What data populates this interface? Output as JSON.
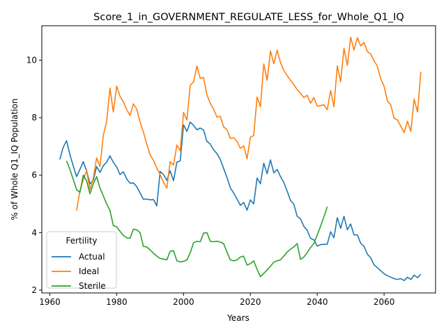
{
  "chart_data": {
    "type": "line",
    "title": "Score_1_in_GOVERNMENT_REGULATE_LESS_for_Whole_Q1_IQ",
    "xlabel": "Years",
    "ylabel": "% of Whole Q1_IQ Population",
    "xlim": [
      1957.6,
      2075.4
    ],
    "ylim": [
      1.9,
      11.2
    ],
    "xticks": [
      1960,
      1980,
      2000,
      2020,
      2040,
      2060
    ],
    "yticks": [
      2,
      4,
      6,
      8,
      10
    ],
    "grid": false,
    "legend": {
      "title": "Fertility",
      "position": "lower-left"
    },
    "series": [
      {
        "name": "Actual",
        "color": "#1f77b4",
        "points": [
          [
            1963,
            6.55
          ],
          [
            1964,
            6.97
          ],
          [
            1965,
            7.2
          ],
          [
            1966,
            6.72
          ],
          [
            1967,
            6.32
          ],
          [
            1968,
            5.95
          ],
          [
            1969,
            6.2
          ],
          [
            1970,
            6.47
          ],
          [
            1971,
            6.15
          ],
          [
            1972,
            5.7
          ],
          [
            1973,
            5.82
          ],
          [
            1974,
            6.3
          ],
          [
            1975,
            6.1
          ],
          [
            1976,
            6.33
          ],
          [
            1977,
            6.45
          ],
          [
            1978,
            6.67
          ],
          [
            1979,
            6.45
          ],
          [
            1980,
            6.28
          ],
          [
            1981,
            6.02
          ],
          [
            1982,
            6.12
          ],
          [
            1983,
            5.87
          ],
          [
            1984,
            5.72
          ],
          [
            1985,
            5.73
          ],
          [
            1986,
            5.6
          ],
          [
            1987,
            5.38
          ],
          [
            1988,
            5.16
          ],
          [
            1989,
            5.17
          ],
          [
            1990,
            5.14
          ],
          [
            1991,
            5.15
          ],
          [
            1992,
            4.93
          ],
          [
            1993,
            6.13
          ],
          [
            1994,
            6.02
          ],
          [
            1995,
            5.82
          ],
          [
            1996,
            6.15
          ],
          [
            1997,
            5.81
          ],
          [
            1998,
            6.45
          ],
          [
            1999,
            6.5
          ],
          [
            2000,
            7.75
          ],
          [
            2001,
            7.52
          ],
          [
            2002,
            7.85
          ],
          [
            2003,
            7.73
          ],
          [
            2004,
            7.58
          ],
          [
            2005,
            7.64
          ],
          [
            2006,
            7.57
          ],
          [
            2007,
            7.18
          ],
          [
            2008,
            7.08
          ],
          [
            2009,
            6.88
          ],
          [
            2010,
            6.75
          ],
          [
            2011,
            6.55
          ],
          [
            2012,
            6.23
          ],
          [
            2013,
            5.92
          ],
          [
            2014,
            5.56
          ],
          [
            2015,
            5.38
          ],
          [
            2016,
            5.17
          ],
          [
            2017,
            4.95
          ],
          [
            2018,
            5.05
          ],
          [
            2019,
            4.78
          ],
          [
            2020,
            5.14
          ],
          [
            2021,
            5.0
          ],
          [
            2022,
            5.9
          ],
          [
            2023,
            5.7
          ],
          [
            2024,
            6.42
          ],
          [
            2025,
            6.05
          ],
          [
            2026,
            6.53
          ],
          [
            2027,
            6.08
          ],
          [
            2028,
            6.2
          ],
          [
            2029,
            5.95
          ],
          [
            2030,
            5.75
          ],
          [
            2031,
            5.45
          ],
          [
            2032,
            5.12
          ],
          [
            2033,
            4.99
          ],
          [
            2034,
            4.57
          ],
          [
            2035,
            4.48
          ],
          [
            2036,
            4.22
          ],
          [
            2037,
            4.08
          ],
          [
            2038,
            3.8
          ],
          [
            2039,
            3.75
          ],
          [
            2040,
            3.53
          ],
          [
            2041,
            3.58
          ],
          [
            2042,
            3.59
          ],
          [
            2043,
            3.6
          ],
          [
            2044,
            4.03
          ],
          [
            2045,
            3.82
          ],
          [
            2046,
            4.52
          ],
          [
            2047,
            4.15
          ],
          [
            2048,
            4.57
          ],
          [
            2049,
            4.1
          ],
          [
            2050,
            4.3
          ],
          [
            2051,
            3.92
          ],
          [
            2052,
            3.92
          ],
          [
            2053,
            3.63
          ],
          [
            2054,
            3.52
          ],
          [
            2055,
            3.25
          ],
          [
            2056,
            3.12
          ],
          [
            2057,
            2.88
          ],
          [
            2058,
            2.78
          ],
          [
            2059,
            2.67
          ],
          [
            2060,
            2.57
          ],
          [
            2061,
            2.5
          ],
          [
            2062,
            2.45
          ],
          [
            2063,
            2.4
          ],
          [
            2064,
            2.37
          ],
          [
            2065,
            2.4
          ],
          [
            2066,
            2.33
          ],
          [
            2067,
            2.45
          ],
          [
            2068,
            2.37
          ],
          [
            2069,
            2.52
          ],
          [
            2070,
            2.43
          ],
          [
            2071,
            2.55
          ]
        ]
      },
      {
        "name": "Ideal",
        "color": "#ff7f0e",
        "points": [
          [
            1968,
            4.77
          ],
          [
            1969,
            5.45
          ],
          [
            1970,
            5.85
          ],
          [
            1971,
            6.15
          ],
          [
            1972,
            5.5
          ],
          [
            1973,
            5.9
          ],
          [
            1974,
            6.6
          ],
          [
            1975,
            6.3
          ],
          [
            1976,
            7.4
          ],
          [
            1977,
            7.85
          ],
          [
            1978,
            9.03
          ],
          [
            1979,
            8.2
          ],
          [
            1980,
            9.1
          ],
          [
            1981,
            8.75
          ],
          [
            1982,
            8.55
          ],
          [
            1983,
            8.28
          ],
          [
            1984,
            8.08
          ],
          [
            1985,
            8.48
          ],
          [
            1986,
            8.3
          ],
          [
            1987,
            7.85
          ],
          [
            1988,
            7.5
          ],
          [
            1989,
            7.08
          ],
          [
            1990,
            6.7
          ],
          [
            1991,
            6.52
          ],
          [
            1992,
            6.25
          ],
          [
            1993,
            6.02
          ],
          [
            1994,
            5.75
          ],
          [
            1995,
            5.55
          ],
          [
            1996,
            6.47
          ],
          [
            1997,
            6.35
          ],
          [
            1998,
            7.05
          ],
          [
            1999,
            6.85
          ],
          [
            2000,
            8.18
          ],
          [
            2001,
            7.92
          ],
          [
            2002,
            9.12
          ],
          [
            2003,
            9.25
          ],
          [
            2004,
            9.8
          ],
          [
            2005,
            9.37
          ],
          [
            2006,
            9.4
          ],
          [
            2007,
            8.8
          ],
          [
            2008,
            8.5
          ],
          [
            2009,
            8.3
          ],
          [
            2010,
            8.02
          ],
          [
            2011,
            8.05
          ],
          [
            2012,
            7.68
          ],
          [
            2013,
            7.58
          ],
          [
            2014,
            7.28
          ],
          [
            2015,
            7.3
          ],
          [
            2016,
            7.18
          ],
          [
            2017,
            6.93
          ],
          [
            2018,
            7.02
          ],
          [
            2019,
            6.57
          ],
          [
            2020,
            7.32
          ],
          [
            2021,
            7.38
          ],
          [
            2022,
            8.72
          ],
          [
            2023,
            8.38
          ],
          [
            2024,
            9.87
          ],
          [
            2025,
            9.3
          ],
          [
            2026,
            10.32
          ],
          [
            2027,
            9.88
          ],
          [
            2028,
            10.35
          ],
          [
            2029,
            9.92
          ],
          [
            2030,
            9.65
          ],
          [
            2031,
            9.47
          ],
          [
            2032,
            9.3
          ],
          [
            2033,
            9.15
          ],
          [
            2034,
            8.98
          ],
          [
            2035,
            8.85
          ],
          [
            2036,
            8.7
          ],
          [
            2037,
            8.78
          ],
          [
            2038,
            8.5
          ],
          [
            2039,
            8.7
          ],
          [
            2040,
            8.4
          ],
          [
            2041,
            8.42
          ],
          [
            2042,
            8.45
          ],
          [
            2043,
            8.28
          ],
          [
            2044,
            8.95
          ],
          [
            2045,
            8.38
          ],
          [
            2046,
            9.8
          ],
          [
            2047,
            9.25
          ],
          [
            2048,
            10.42
          ],
          [
            2049,
            9.82
          ],
          [
            2050,
            10.8
          ],
          [
            2051,
            10.35
          ],
          [
            2052,
            10.78
          ],
          [
            2053,
            10.5
          ],
          [
            2054,
            10.62
          ],
          [
            2055,
            10.3
          ],
          [
            2056,
            10.22
          ],
          [
            2057,
            9.98
          ],
          [
            2058,
            9.8
          ],
          [
            2059,
            9.35
          ],
          [
            2060,
            9.1
          ],
          [
            2061,
            8.58
          ],
          [
            2062,
            8.45
          ],
          [
            2063,
            7.98
          ],
          [
            2064,
            7.92
          ],
          [
            2065,
            7.7
          ],
          [
            2066,
            7.48
          ],
          [
            2067,
            7.88
          ],
          [
            2068,
            7.52
          ],
          [
            2069,
            8.65
          ],
          [
            2070,
            8.2
          ],
          [
            2071,
            9.6
          ]
        ]
      },
      {
        "name": "Sterile",
        "color": "#2ca02c",
        "points": [
          [
            1965,
            6.5
          ],
          [
            1966,
            6.2
          ],
          [
            1967,
            5.85
          ],
          [
            1968,
            5.5
          ],
          [
            1969,
            5.4
          ],
          [
            1970,
            6.0
          ],
          [
            1971,
            5.8
          ],
          [
            1972,
            5.35
          ],
          [
            1973,
            5.7
          ],
          [
            1974,
            5.95
          ],
          [
            1975,
            5.55
          ],
          [
            1976,
            5.28
          ],
          [
            1977,
            5.0
          ],
          [
            1978,
            4.77
          ],
          [
            1979,
            4.25
          ],
          [
            1980,
            4.2
          ],
          [
            1981,
            4.05
          ],
          [
            1982,
            3.9
          ],
          [
            1983,
            3.82
          ],
          [
            1984,
            3.8
          ],
          [
            1985,
            4.12
          ],
          [
            1986,
            4.1
          ],
          [
            1987,
            4.0
          ],
          [
            1988,
            3.52
          ],
          [
            1989,
            3.5
          ],
          [
            1990,
            3.4
          ],
          [
            1991,
            3.28
          ],
          [
            1992,
            3.18
          ],
          [
            1993,
            3.1
          ],
          [
            1994,
            3.08
          ],
          [
            1995,
            3.05
          ],
          [
            1996,
            3.35
          ],
          [
            1997,
            3.37
          ],
          [
            1998,
            3.02
          ],
          [
            1999,
            2.98
          ],
          [
            2000,
            3.0
          ],
          [
            2001,
            3.05
          ],
          [
            2002,
            3.3
          ],
          [
            2003,
            3.65
          ],
          [
            2004,
            3.7
          ],
          [
            2005,
            3.68
          ],
          [
            2006,
            3.98
          ],
          [
            2007,
            4.0
          ],
          [
            2008,
            3.7
          ],
          [
            2009,
            3.68
          ],
          [
            2010,
            3.7
          ],
          [
            2011,
            3.67
          ],
          [
            2012,
            3.62
          ],
          [
            2013,
            3.32
          ],
          [
            2014,
            3.05
          ],
          [
            2015,
            3.02
          ],
          [
            2016,
            3.05
          ],
          [
            2017,
            3.15
          ],
          [
            2018,
            3.18
          ],
          [
            2019,
            2.87
          ],
          [
            2020,
            2.92
          ],
          [
            2021,
            3.02
          ],
          [
            2022,
            2.72
          ],
          [
            2023,
            2.47
          ],
          [
            2024,
            2.58
          ],
          [
            2025,
            2.7
          ],
          [
            2026,
            2.83
          ],
          [
            2027,
            2.97
          ],
          [
            2028,
            3.02
          ],
          [
            2029,
            3.05
          ],
          [
            2030,
            3.18
          ],
          [
            2031,
            3.32
          ],
          [
            2032,
            3.42
          ],
          [
            2033,
            3.5
          ],
          [
            2034,
            3.62
          ],
          [
            2035,
            3.07
          ],
          [
            2036,
            3.15
          ],
          [
            2037,
            3.3
          ],
          [
            2038,
            3.48
          ],
          [
            2039,
            3.62
          ],
          [
            2040,
            3.92
          ],
          [
            2041,
            4.22
          ],
          [
            2042,
            4.55
          ],
          [
            2043,
            4.9
          ]
        ]
      }
    ]
  }
}
